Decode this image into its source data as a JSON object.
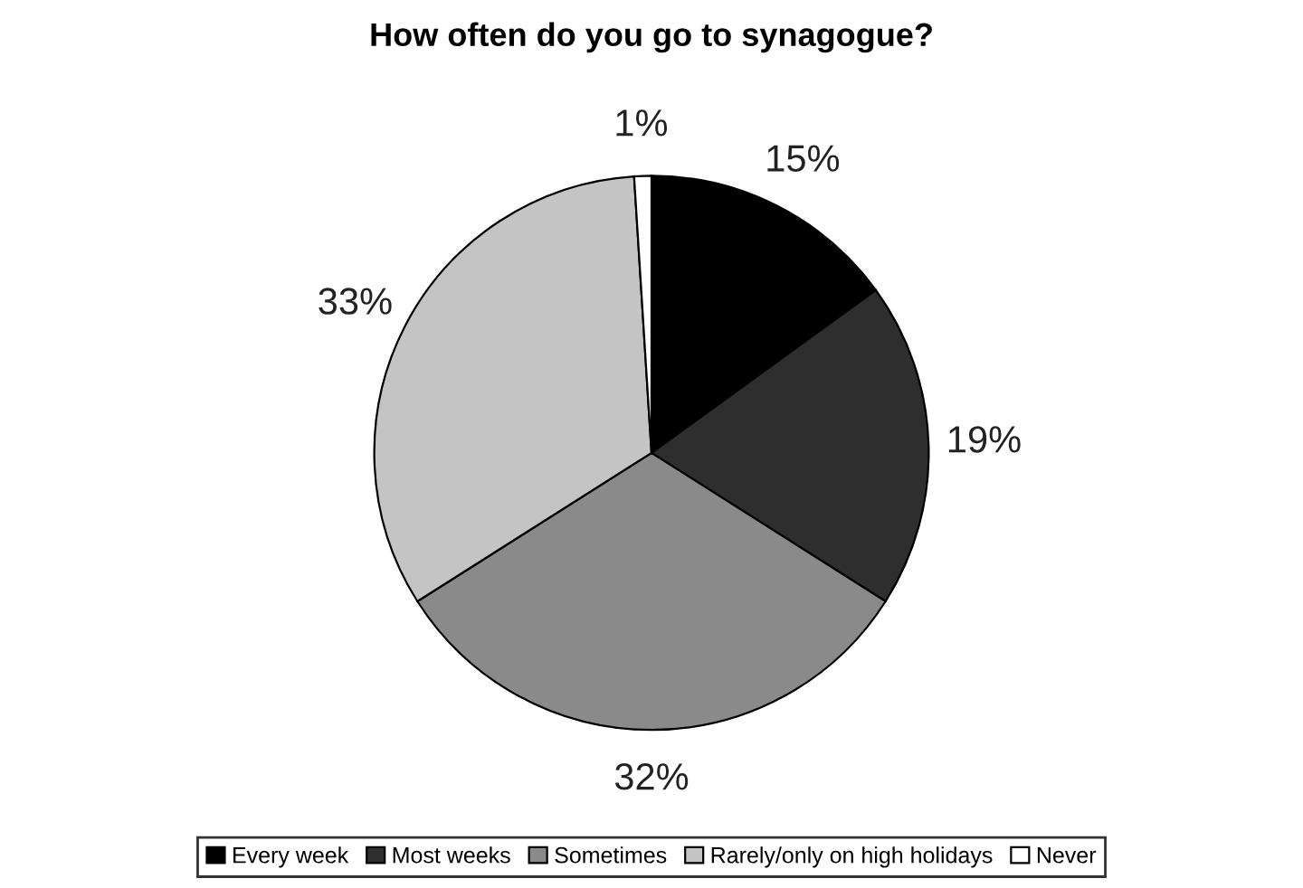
{
  "chart_data": {
    "type": "pie",
    "title": "How often do you go to synagogue?",
    "categories": [
      "Every week",
      "Most weeks",
      "Sometimes",
      "Rarely/only on high holidays",
      "Never"
    ],
    "values": [
      15,
      19,
      32,
      33,
      1
    ],
    "value_labels": [
      "15%",
      "19%",
      "32%",
      "33%",
      "1%"
    ],
    "colors": [
      "#000000",
      "#2e2e2e",
      "#8a8a8a",
      "#c4c4c4",
      "#ffffff"
    ],
    "legend": "bottom"
  }
}
